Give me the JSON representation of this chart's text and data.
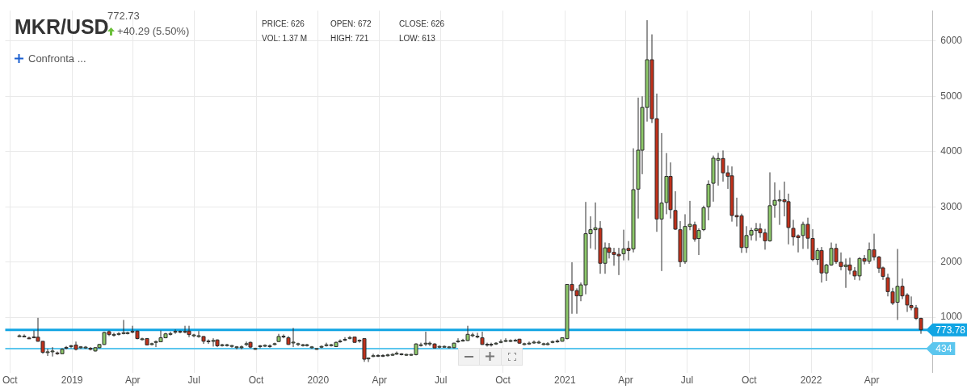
{
  "chart_data": {
    "type": "candlestick",
    "title": "MKR/USD",
    "annotations": [
      "772.73",
      "+40.29 (5.50%)",
      "PRICE: 626",
      "VOL: 1.37 M",
      "OPEN: 672",
      "HIGH: 721",
      "CLOSE: 626",
      "LOW: 613",
      "Confronta ..."
    ],
    "x": [
      "2018-10-15",
      "2018-10-22",
      "2018-10-29",
      "2018-11-05",
      "2018-11-12",
      "2018-11-19",
      "2018-11-26",
      "2018-12-03",
      "2018-12-10",
      "2018-12-17",
      "2018-12-24",
      "2018-12-31",
      "2019-01-07",
      "2019-01-14",
      "2019-01-21",
      "2019-01-28",
      "2019-02-04",
      "2019-02-11",
      "2019-02-18",
      "2019-02-25",
      "2019-03-04",
      "2019-03-11",
      "2019-03-18",
      "2019-03-25",
      "2019-04-01",
      "2019-04-08",
      "2019-04-15",
      "2019-04-22",
      "2019-04-29",
      "2019-05-06",
      "2019-05-13",
      "2019-05-20",
      "2019-05-27",
      "2019-06-03",
      "2019-06-10",
      "2019-06-17",
      "2019-06-24",
      "2019-07-01",
      "2019-07-08",
      "2019-07-15",
      "2019-07-22",
      "2019-07-29",
      "2019-08-05",
      "2019-08-12",
      "2019-08-19",
      "2019-08-26",
      "2019-09-02",
      "2019-09-09",
      "2019-09-16",
      "2019-09-23",
      "2019-09-30",
      "2019-10-07",
      "2019-10-14",
      "2019-10-21",
      "2019-10-28",
      "2019-11-04",
      "2019-11-11",
      "2019-11-18",
      "2019-11-25",
      "2019-12-02",
      "2019-12-09",
      "2019-12-16",
      "2019-12-23",
      "2019-12-30",
      "2020-01-06",
      "2020-01-13",
      "2020-01-20",
      "2020-01-27",
      "2020-02-03",
      "2020-02-10",
      "2020-02-17",
      "2020-02-24",
      "2020-03-02",
      "2020-03-09",
      "2020-03-16",
      "2020-03-23",
      "2020-03-30",
      "2020-04-06",
      "2020-04-13",
      "2020-04-20",
      "2020-04-27",
      "2020-05-04",
      "2020-05-11",
      "2020-05-18",
      "2020-05-25",
      "2020-06-01",
      "2020-06-08",
      "2020-06-15",
      "2020-06-22",
      "2020-06-29",
      "2020-07-06",
      "2020-07-13",
      "2020-07-20",
      "2020-07-27",
      "2020-08-03",
      "2020-08-10",
      "2020-08-17",
      "2020-08-24",
      "2020-08-31",
      "2020-09-07",
      "2020-09-14",
      "2020-09-21",
      "2020-09-28",
      "2020-10-05",
      "2020-10-12",
      "2020-10-19",
      "2020-10-26",
      "2020-11-02",
      "2020-11-09",
      "2020-11-16",
      "2020-11-23",
      "2020-11-30",
      "2020-12-07",
      "2020-12-14",
      "2020-12-21",
      "2020-12-28",
      "2021-01-04",
      "2021-01-11",
      "2021-01-18",
      "2021-01-25",
      "2021-02-01",
      "2021-02-08",
      "2021-02-15",
      "2021-02-22",
      "2021-03-01",
      "2021-03-08",
      "2021-03-15",
      "2021-03-22",
      "2021-03-29",
      "2021-04-05",
      "2021-04-12",
      "2021-04-19",
      "2021-04-26",
      "2021-05-03",
      "2021-05-10",
      "2021-05-17",
      "2021-05-24",
      "2021-05-31",
      "2021-06-07",
      "2021-06-14",
      "2021-06-21",
      "2021-06-28",
      "2021-07-05",
      "2021-07-12",
      "2021-07-19",
      "2021-07-26",
      "2021-08-02",
      "2021-08-09",
      "2021-08-16",
      "2021-08-23",
      "2021-08-30",
      "2021-09-06",
      "2021-09-13",
      "2021-09-20",
      "2021-09-27",
      "2021-10-04",
      "2021-10-11",
      "2021-10-18",
      "2021-10-25",
      "2021-11-01",
      "2021-11-08",
      "2021-11-15",
      "2021-11-22",
      "2021-11-29",
      "2021-12-06",
      "2021-12-13",
      "2021-12-20",
      "2021-12-27",
      "2022-01-03",
      "2022-01-10",
      "2022-01-17",
      "2022-01-24",
      "2022-01-31",
      "2022-02-07",
      "2022-02-14",
      "2022-02-21",
      "2022-02-28",
      "2022-03-07",
      "2022-03-14",
      "2022-03-21",
      "2022-03-28",
      "2022-04-04",
      "2022-04-11",
      "2022-04-18",
      "2022-04-25",
      "2022-05-02",
      "2022-05-09",
      "2022-05-16",
      "2022-05-23",
      "2022-05-30",
      "2022-06-06",
      "2022-06-13"
    ],
    "ohlc": [
      [
        655,
        690,
        640,
        665
      ],
      [
        660,
        690,
        640,
        660
      ],
      [
        625,
        650,
        610,
        620
      ],
      [
        635,
        760,
        620,
        645
      ],
      [
        640,
        990,
        560,
        565
      ],
      [
        565,
        570,
        340,
        365
      ],
      [
        365,
        430,
        300,
        375
      ],
      [
        380,
        460,
        290,
        390
      ],
      [
        355,
        380,
        320,
        345
      ],
      [
        340,
        440,
        330,
        420
      ],
      [
        440,
        480,
        420,
        455
      ],
      [
        475,
        500,
        440,
        485
      ],
      [
        498,
        560,
        400,
        420
      ],
      [
        455,
        480,
        430,
        465
      ],
      [
        455,
        480,
        430,
        460
      ],
      [
        440,
        460,
        400,
        420
      ],
      [
        390,
        460,
        380,
        450
      ],
      [
        450,
        520,
        440,
        508
      ],
      [
        508,
        740,
        500,
        725
      ],
      [
        740,
        760,
        660,
        690
      ],
      [
        680,
        720,
        650,
        690
      ],
      [
        695,
        730,
        670,
        705
      ],
      [
        710,
        952,
        690,
        720
      ],
      [
        710,
        740,
        690,
        720
      ],
      [
        735,
        846,
        710,
        745
      ],
      [
        750,
        760,
        600,
        615
      ],
      [
        600,
        630,
        580,
        610
      ],
      [
        615,
        625,
        490,
        500
      ],
      [
        512,
        540,
        490,
        522
      ],
      [
        550,
        580,
        460,
        560
      ],
      [
        556,
        760,
        550,
        629
      ],
      [
        629,
        720,
        620,
        700
      ],
      [
        695,
        740,
        670,
        705
      ],
      [
        735,
        780,
        700,
        745
      ],
      [
        735,
        760,
        710,
        745
      ],
      [
        735,
        846,
        710,
        745
      ],
      [
        750,
        846,
        640,
        686
      ],
      [
        672,
        700,
        640,
        680
      ],
      [
        658,
        750,
        630,
        666
      ],
      [
        652,
        660,
        520,
        566
      ],
      [
        560,
        600,
        520,
        572
      ],
      [
        570,
        620,
        470,
        580
      ],
      [
        590,
        600,
        460,
        484
      ],
      [
        494,
        520,
        470,
        502
      ],
      [
        494,
        520,
        470,
        502
      ],
      [
        480,
        500,
        450,
        488
      ],
      [
        455,
        480,
        420,
        465
      ],
      [
        455,
        490,
        420,
        465
      ],
      [
        512,
        560,
        480,
        522
      ],
      [
        546,
        560,
        440,
        460
      ],
      [
        425,
        450,
        410,
        435
      ],
      [
        475,
        500,
        440,
        483
      ],
      [
        484,
        510,
        460,
        492
      ],
      [
        475,
        510,
        450,
        483
      ],
      [
        512,
        540,
        490,
        522
      ],
      [
        561,
        700,
        550,
        653
      ],
      [
        648,
        690,
        620,
        658
      ],
      [
        629,
        660,
        500,
        508
      ],
      [
        540,
        807,
        460,
        550
      ],
      [
        512,
        540,
        480,
        522
      ],
      [
        494,
        520,
        470,
        502
      ],
      [
        494,
        520,
        470,
        502
      ],
      [
        456,
        480,
        430,
        464
      ],
      [
        426,
        440,
        410,
        434
      ],
      [
        465,
        490,
        440,
        473
      ],
      [
        494,
        540,
        470,
        502
      ],
      [
        494,
        520,
        470,
        502
      ],
      [
        469,
        560,
        460,
        546
      ],
      [
        562,
        600,
        540,
        570
      ],
      [
        590,
        640,
        570,
        600
      ],
      [
        625,
        660,
        600,
        633
      ],
      [
        643,
        650,
        540,
        546
      ],
      [
        576,
        600,
        540,
        584
      ],
      [
        614,
        620,
        194,
        242
      ],
      [
        252,
        270,
        190,
        262
      ],
      [
        296,
        340,
        280,
        305
      ],
      [
        301,
        330,
        280,
        309
      ],
      [
        301,
        330,
        280,
        309
      ],
      [
        311,
        340,
        290,
        319
      ],
      [
        320,
        350,
        300,
        328
      ],
      [
        340,
        380,
        320,
        348
      ],
      [
        330,
        350,
        310,
        338
      ],
      [
        320,
        340,
        300,
        328
      ],
      [
        320,
        340,
        300,
        328
      ],
      [
        324,
        530,
        310,
        517
      ],
      [
        494,
        540,
        470,
        502
      ],
      [
        523,
        740,
        480,
        531
      ],
      [
        523,
        560,
        480,
        531
      ],
      [
        517,
        530,
        440,
        445
      ],
      [
        465,
        490,
        440,
        473
      ],
      [
        465,
        490,
        450,
        473
      ],
      [
        456,
        480,
        440,
        464
      ],
      [
        450,
        540,
        440,
        532
      ],
      [
        562,
        620,
        540,
        570
      ],
      [
        576,
        610,
        560,
        584
      ],
      [
        580,
        846,
        570,
        691
      ],
      [
        673,
        720,
        640,
        681
      ],
      [
        649,
        720,
        620,
        657
      ],
      [
        629,
        740,
        500,
        508
      ],
      [
        504,
        540,
        470,
        512
      ],
      [
        504,
        540,
        470,
        512
      ],
      [
        523,
        550,
        500,
        531
      ],
      [
        552,
        600,
        530,
        560
      ],
      [
        571,
        620,
        550,
        579
      ],
      [
        571,
        600,
        550,
        579
      ],
      [
        576,
        610,
        560,
        584
      ],
      [
        604,
        610,
        520,
        532
      ],
      [
        513,
        540,
        490,
        521
      ],
      [
        523,
        560,
        500,
        531
      ],
      [
        542,
        580,
        520,
        550
      ],
      [
        542,
        580,
        520,
        550
      ],
      [
        513,
        540,
        490,
        521
      ],
      [
        513,
        550,
        490,
        521
      ],
      [
        552,
        580,
        530,
        560
      ],
      [
        562,
        600,
        540,
        570
      ],
      [
        566,
        640,
        560,
        629
      ],
      [
        614,
        1600,
        600,
        1594
      ],
      [
        1595,
        1996,
        1064,
        1484
      ],
      [
        1484,
        1523,
        1064,
        1388
      ],
      [
        1388,
        1629,
        1291,
        1586
      ],
      [
        1586,
        3088,
        1417,
        2513
      ],
      [
        2513,
        2827,
        2247,
        2585
      ],
      [
        2585,
        3078,
        2223,
        2619
      ],
      [
        2609,
        2740,
        1788,
        1977
      ],
      [
        1977,
        2354,
        1788,
        2257
      ],
      [
        2257,
        2344,
        2064,
        2175
      ],
      [
        2175,
        2257,
        1933,
        2136
      ],
      [
        2140,
        2257,
        1764,
        2112
      ],
      [
        2150,
        2585,
        2030,
        2238
      ],
      [
        2247,
        2380,
        2030,
        2209
      ],
      [
        2238,
        4058,
        2175,
        3310
      ],
      [
        3320,
        4976,
        2788,
        4025
      ],
      [
        4025,
        5000,
        3590,
        4798
      ],
      [
        4798,
        6377,
        4542,
        5662
      ],
      [
        5662,
        6121,
        4517,
        4595
      ],
      [
        4595,
        5049,
        2547,
        2779
      ],
      [
        2779,
        4334,
        1837,
        3068
      ],
      [
        3078,
        3972,
        2865,
        3551
      ],
      [
        3551,
        3803,
        2788,
        2948
      ],
      [
        2933,
        3281,
        2580,
        2595
      ],
      [
        2585,
        2740,
        1909,
        2006
      ],
      [
        2006,
        2865,
        1967,
        2643
      ],
      [
        2643,
        3107,
        2576,
        2682
      ],
      [
        2673,
        2731,
        2368,
        2417
      ],
      [
        2426,
        2610,
        2127,
        2571
      ],
      [
        2586,
        3020,
        2560,
        2982
      ],
      [
        3000,
        3479,
        2755,
        3407
      ],
      [
        3426,
        3928,
        3093,
        3880
      ],
      [
        3842,
        3977,
        3383,
        3875
      ],
      [
        3875,
        4020,
        3455,
        3615
      ],
      [
        3615,
        3745,
        3325,
        3552
      ],
      [
        3561,
        3730,
        2731,
        2842
      ],
      [
        2842,
        3165,
        2644,
        2818
      ],
      [
        2837,
        2876,
        2166,
        2262
      ],
      [
        2262,
        2649,
        2166,
        2480
      ],
      [
        2490,
        2620,
        2393,
        2571
      ],
      [
        2571,
        2707,
        2383,
        2600
      ],
      [
        2600,
        2700,
        2441,
        2528
      ],
      [
        2528,
        2600,
        2224,
        2383
      ],
      [
        2383,
        3624,
        2368,
        3020
      ],
      [
        3030,
        3441,
        2803,
        3117
      ],
      [
        3107,
        3301,
        2673,
        3126
      ],
      [
        3126,
        3455,
        2827,
        3093
      ],
      [
        3093,
        3238,
        2320,
        2624
      ],
      [
        2610,
        2764,
        2296,
        2455
      ],
      [
        2475,
        2500,
        2175,
        2441
      ],
      [
        2480,
        2731,
        2238,
        2682
      ],
      [
        2682,
        2803,
        2238,
        2431
      ],
      [
        2426,
        2595,
        2016,
        2045
      ],
      [
        2045,
        2257,
        1948,
        2209
      ],
      [
        2209,
        2272,
        1629,
        1803
      ],
      [
        1803,
        1967,
        1658,
        1947
      ],
      [
        1947,
        2353,
        1933,
        2247
      ],
      [
        2247,
        2334,
        1967,
        2005
      ],
      [
        1996,
        2174,
        1851,
        1918
      ],
      [
        1918,
        2063,
        1532,
        1947
      ],
      [
        1947,
        2078,
        1774,
        1851
      ],
      [
        1836,
        1909,
        1677,
        1749
      ],
      [
        1749,
        2088,
        1667,
        2063
      ],
      [
        2063,
        2126,
        1957,
        2015
      ],
      [
        2015,
        2353,
        1967,
        2223
      ],
      [
        2223,
        2513,
        2030,
        2092
      ],
      [
        2092,
        2110,
        1803,
        1889
      ],
      [
        1894,
        1918,
        1677,
        1740
      ],
      [
        1716,
        1788,
        1378,
        1464
      ],
      [
        1460,
        1532,
        1223,
        1257
      ],
      [
        1271,
        2237,
        952,
        1561
      ],
      [
        1561,
        1701,
        1329,
        1387
      ],
      [
        1402,
        1435,
        1097,
        1223
      ],
      [
        1213,
        1377,
        1126,
        1175
      ],
      [
        1170,
        1223,
        952,
        981
      ],
      [
        981,
        991,
        701,
        774
      ]
    ],
    "xlim": [
      "2018-09-24",
      "2022-06-30"
    ],
    "xticks": [
      {
        "value": "2018-10-01",
        "label": "Oct"
      },
      {
        "value": "2019-01-01",
        "label": "2019"
      },
      {
        "value": "2019-04-01",
        "label": "Apr"
      },
      {
        "value": "2019-07-01",
        "label": "Jul"
      },
      {
        "value": "2019-10-01",
        "label": "Oct"
      },
      {
        "value": "2020-01-01",
        "label": "2020"
      },
      {
        "value": "2020-04-01",
        "label": "Apr"
      },
      {
        "value": "2020-07-01",
        "label": "Jul"
      },
      {
        "value": "2020-10-01",
        "label": "Oct"
      },
      {
        "value": "2021-01-01",
        "label": "2021"
      },
      {
        "value": "2021-04-01",
        "label": "Apr"
      },
      {
        "value": "2021-07-01",
        "label": "Jul"
      },
      {
        "value": "2021-10-01",
        "label": "Oct"
      },
      {
        "value": "2022-01-01",
        "label": "2022"
      },
      {
        "value": "2022-04-01",
        "label": "Apr"
      }
    ],
    "ylim": [
      0,
      6550
    ],
    "yticks": [
      1000,
      2000,
      3000,
      4000,
      5000,
      6000
    ],
    "ref_lines": [
      {
        "axis": "y",
        "value": 773.78,
        "label": "773.78",
        "color": "#12a5e3"
      },
      {
        "axis": "y",
        "value": 434,
        "label": "434",
        "color": "#5cc6ee"
      }
    ],
    "grid": true,
    "legend": false
  }
}
